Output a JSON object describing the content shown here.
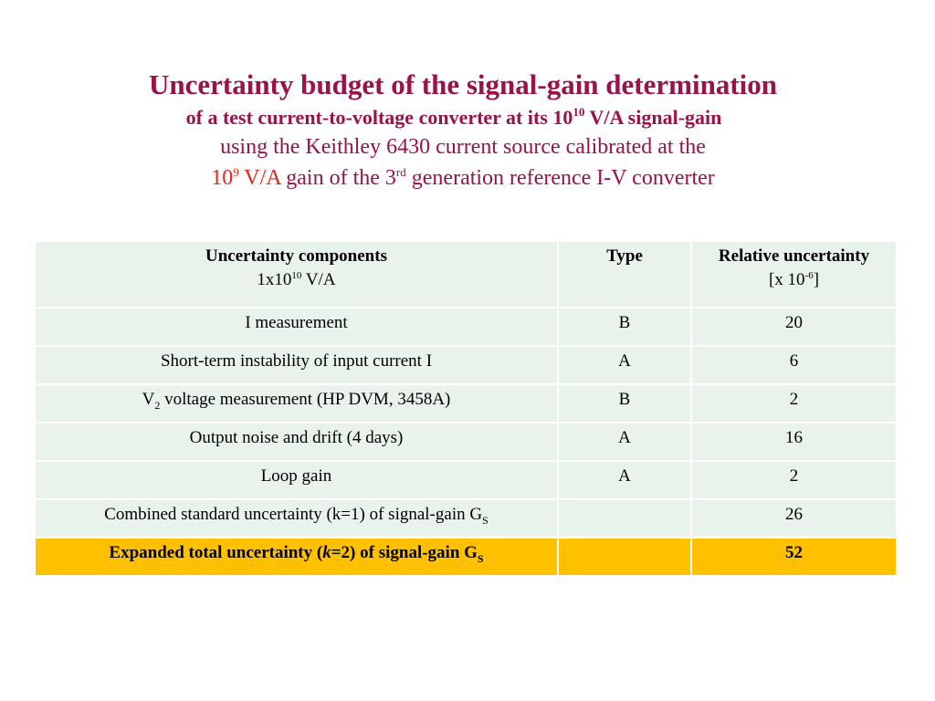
{
  "title": {
    "line1": "Uncertainty budget of the signal-gain determination",
    "line2_pre": "of a test current-to-voltage converter at its 10",
    "line2_exp": "10",
    "line2_post": " V/A signal-gain",
    "line3": "using the Keithley 6430 current source calibrated at the",
    "line4_red_pre": "10",
    "line4_red_exp": "9",
    "line4_red_post": " V/A",
    "line4_mid": " gain of the 3",
    "line4_sup": "rd",
    "line4_post": " generation reference I-V converter"
  },
  "table": {
    "headers": {
      "components": "Uncertainty components",
      "components_sub_pre": "1x10",
      "components_sub_exp": "10",
      "components_sub_post": " V/A",
      "type": "Type",
      "relative": "Relative uncertainty",
      "relative_sub_pre": "[x 10",
      "relative_sub_exp": "-6",
      "relative_sub_post": "]"
    },
    "rows": [
      {
        "component": "I measurement",
        "type": "B",
        "value": "20"
      },
      {
        "component": "Short-term instability of input current I",
        "type": "A",
        "value": "6"
      },
      {
        "component_pre": "V",
        "component_sub": "2",
        "component_post": " voltage measurement (HP DVM, 3458A)",
        "type": "B",
        "value": "2"
      },
      {
        "component": "Output noise and drift (4 days)",
        "type": "A",
        "value": "16"
      },
      {
        "component": "Loop gain",
        "type": "A",
        "value": "2"
      },
      {
        "component_pre": "Combined standard uncertainty (k=1) of signal-gain G",
        "component_sub": "S",
        "type": "",
        "value": "26"
      }
    ],
    "total": {
      "pre": "Expanded total uncertainty (",
      "k": "k",
      "mid": "=2) of signal-gain G",
      "sub": "S",
      "type": "",
      "value": "52"
    }
  },
  "colors": {
    "title": "#99124a",
    "highlight": "#e8221c",
    "row_bg": "#e8f3ec",
    "total_bg": "#ffc000"
  }
}
